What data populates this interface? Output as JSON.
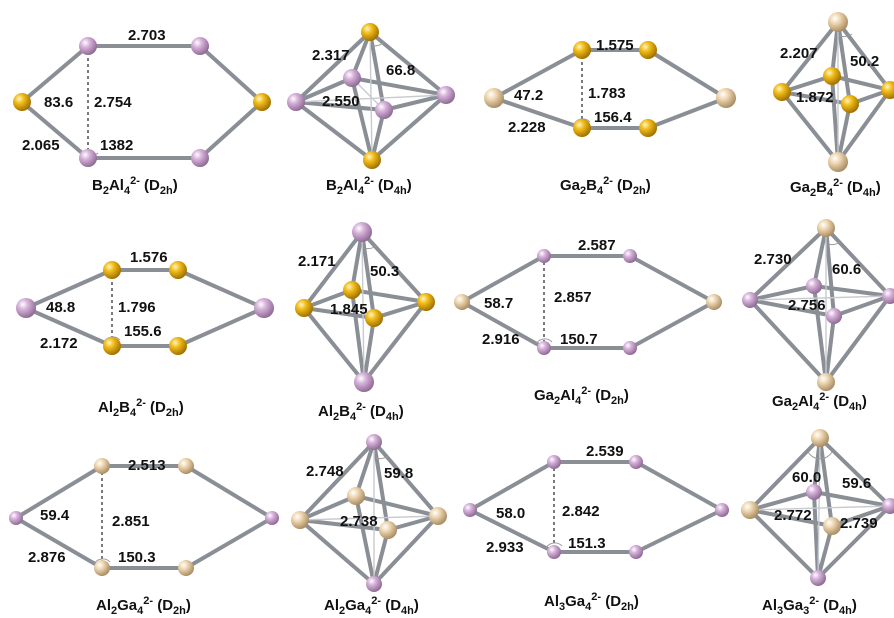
{
  "colors": {
    "B": "#f3bf1c",
    "Al": "#d8b4dc",
    "Ga": "#f0d9b4",
    "bond": "#8a8f96"
  },
  "panels": [
    {
      "title_parts": [
        "B",
        "2",
        "Al",
        "4",
        "2-",
        " (D",
        "2h",
        ")"
      ],
      "labels": [
        "2.703",
        "83.6",
        "2.754",
        "2.065",
        "1382"
      ]
    },
    {
      "title_parts": [
        "B",
        "2",
        "Al",
        "4",
        "2-",
        " (D",
        "4h",
        ")"
      ],
      "labels": [
        "2.317",
        "66.8",
        "2.550"
      ]
    },
    {
      "title_parts": [
        "Ga",
        "2",
        "B",
        "4",
        "2-",
        " (D",
        "2h",
        ")"
      ],
      "labels": [
        "1.575",
        "47.2",
        "1.783",
        "2.228",
        "156.4"
      ]
    },
    {
      "title_parts": [
        "Ga",
        "2",
        "B",
        "4",
        "2-",
        " (D",
        "4h",
        ")"
      ],
      "labels": [
        "2.207",
        "50.2",
        "1.872"
      ]
    },
    {
      "title_parts": [
        "Al",
        "2",
        "B",
        "4",
        "2-",
        " (D",
        "2h",
        ")"
      ],
      "labels": [
        "1.576",
        "48.8",
        "1.796",
        "2.172",
        "155.6"
      ]
    },
    {
      "title_parts": [
        "Al",
        "2",
        "B",
        "4",
        "2-",
        " (D",
        "4h",
        ")"
      ],
      "labels": [
        "2.171",
        "50.3",
        "1.845"
      ]
    },
    {
      "title_parts": [
        "Ga",
        "2",
        "Al",
        "4",
        "2-",
        " (D",
        "2h",
        ")"
      ],
      "labels": [
        "2.587",
        "58.7",
        "2.857",
        "2.916",
        "150.7"
      ]
    },
    {
      "title_parts": [
        "Ga",
        "2",
        "Al",
        "4",
        "2-",
        " (D",
        "4h",
        ")"
      ],
      "labels": [
        "2.730",
        "60.6",
        "2.756"
      ]
    },
    {
      "title_parts": [
        "Al",
        "2",
        "Ga",
        "4",
        "2-",
        " (D",
        "2h",
        ")"
      ],
      "labels": [
        "2.513",
        "59.4",
        "2.851",
        "2.876",
        "150.3"
      ]
    },
    {
      "title_parts": [
        "Al",
        "2",
        "Ga",
        "4",
        "2-",
        " (D",
        "4h",
        ")"
      ],
      "labels": [
        "2.748",
        "59.8",
        "2.738"
      ]
    },
    {
      "title_parts": [
        "Al",
        "3",
        "Ga",
        "4",
        "2-",
        " (D",
        "2h",
        ")"
      ],
      "labels": [
        "2.539",
        "58.0",
        "2.842",
        "2.933",
        "151.3"
      ]
    },
    {
      "title_parts": [
        "Al",
        "3",
        "Ga",
        "3",
        "2-",
        " (D",
        "4h",
        ")"
      ],
      "labels": [
        "60.0",
        "59.6",
        "2.772",
        "2.739"
      ]
    }
  ]
}
